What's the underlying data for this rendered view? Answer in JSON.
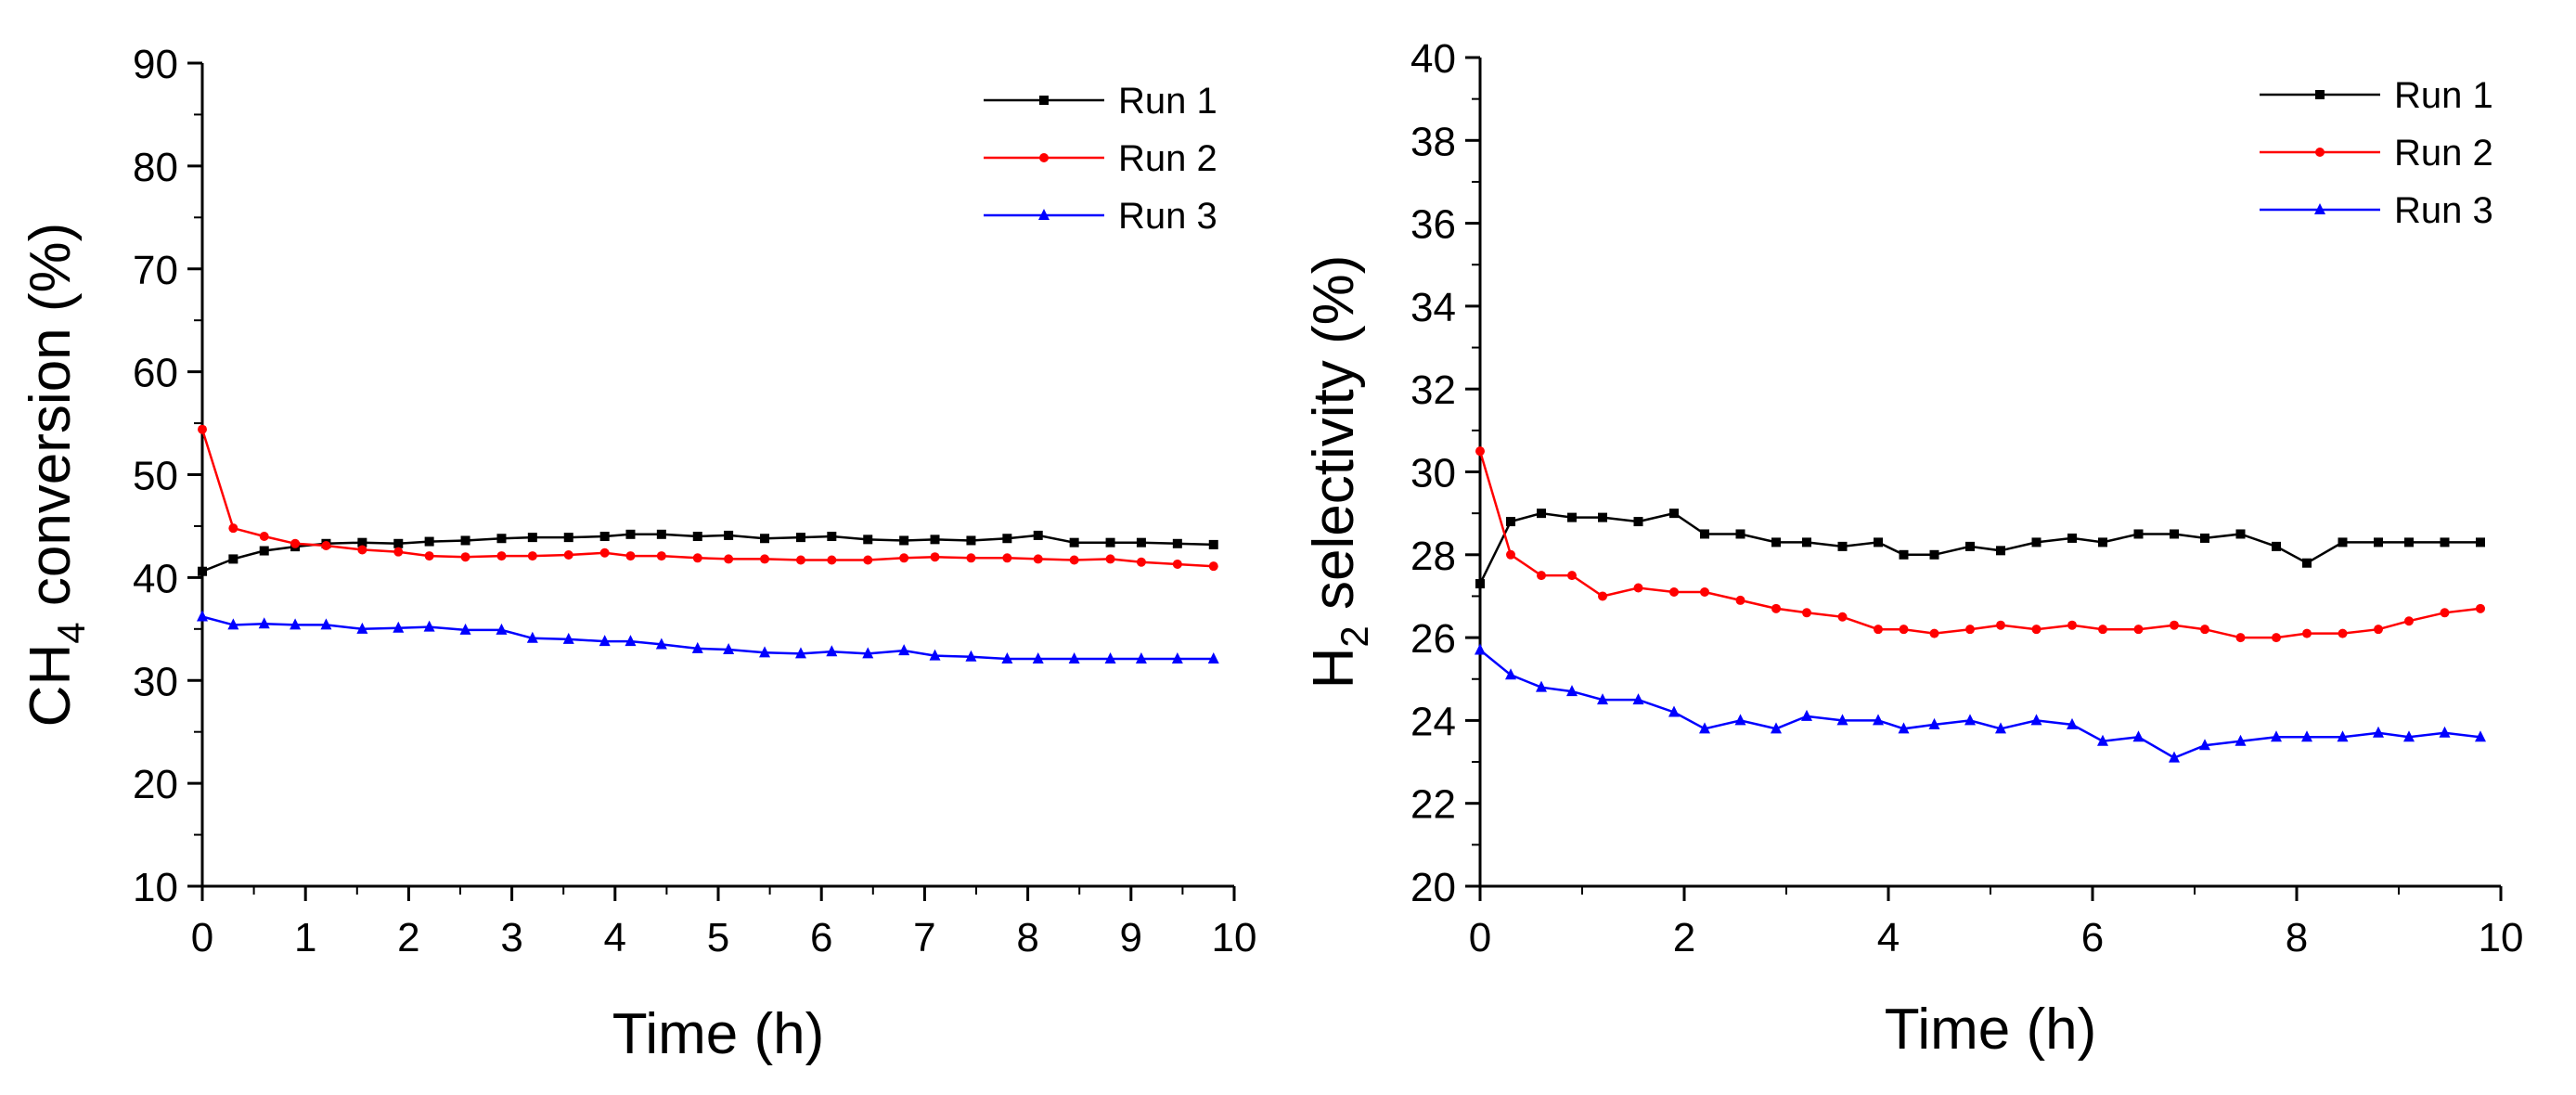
{
  "chart_data": [
    {
      "type": "line",
      "title": "",
      "xlabel": "Time (h)",
      "ylabel": {
        "main": "CH",
        "sub": "4",
        "rest": " conversion (%)"
      },
      "xlim": [
        0,
        10
      ],
      "ylim": [
        10,
        90
      ],
      "xticks": [
        0,
        1,
        2,
        3,
        4,
        5,
        6,
        7,
        8,
        9,
        10
      ],
      "yticks": [
        10,
        20,
        30,
        40,
        50,
        60,
        70,
        80,
        90
      ],
      "legend_position": "top-right",
      "x": [
        0,
        0.3,
        0.6,
        0.9,
        1.2,
        1.55,
        1.9,
        2.2,
        2.55,
        2.9,
        3.2,
        3.55,
        3.9,
        4.15,
        4.45,
        4.8,
        5.1,
        5.45,
        5.8,
        6.1,
        6.45,
        6.8,
        7.1,
        7.45,
        7.8,
        8.1,
        8.45,
        8.8,
        9.1,
        9.45,
        9.8
      ],
      "series": [
        {
          "name": "Run 1",
          "color": "#000000",
          "marker": "square",
          "values": [
            40.6,
            41.8,
            42.6,
            43.0,
            43.3,
            43.4,
            43.3,
            43.5,
            43.6,
            43.8,
            43.9,
            43.9,
            44.0,
            44.2,
            44.2,
            44.0,
            44.1,
            43.8,
            43.9,
            44.0,
            43.7,
            43.6,
            43.7,
            43.6,
            43.8,
            44.1,
            43.4,
            43.4,
            43.4,
            43.3,
            43.2
          ]
        },
        {
          "name": "Run 2",
          "color": "#ff0000",
          "marker": "circle",
          "values": [
            54.4,
            44.8,
            44.0,
            43.3,
            43.1,
            42.7,
            42.5,
            42.1,
            42.0,
            42.1,
            42.1,
            42.2,
            42.4,
            42.1,
            42.1,
            41.9,
            41.8,
            41.8,
            41.7,
            41.7,
            41.7,
            41.9,
            42.0,
            41.9,
            41.9,
            41.8,
            41.7,
            41.8,
            41.5,
            41.3,
            41.1
          ]
        },
        {
          "name": "Run 3",
          "color": "#0000ff",
          "marker": "triangle",
          "values": [
            36.2,
            35.4,
            35.5,
            35.4,
            35.4,
            35.0,
            35.1,
            35.2,
            34.9,
            34.9,
            34.1,
            34.0,
            33.8,
            33.8,
            33.5,
            33.1,
            33.0,
            32.7,
            32.6,
            32.8,
            32.6,
            32.9,
            32.4,
            32.3,
            32.1,
            32.1,
            32.1,
            32.1,
            32.1,
            32.1,
            32.1
          ]
        }
      ]
    },
    {
      "type": "line",
      "title": "",
      "xlabel": "Time (h)",
      "ylabel": {
        "main": "H",
        "sub": "2",
        "rest": " selectivity (%)"
      },
      "xlim": [
        0,
        10
      ],
      "ylim": [
        20,
        40
      ],
      "xticks": [
        0,
        2,
        4,
        6,
        8,
        10
      ],
      "yticks": [
        20,
        22,
        24,
        26,
        28,
        30,
        32,
        34,
        36,
        38,
        40
      ],
      "legend_position": "top-right",
      "x": [
        0,
        0.3,
        0.6,
        0.9,
        1.2,
        1.55,
        1.9,
        2.2,
        2.55,
        2.9,
        3.2,
        3.55,
        3.9,
        4.15,
        4.45,
        4.8,
        5.1,
        5.45,
        5.8,
        6.1,
        6.45,
        6.8,
        7.1,
        7.45,
        7.8,
        8.1,
        8.45,
        8.8,
        9.1,
        9.45,
        9.8
      ],
      "series": [
        {
          "name": "Run 1",
          "color": "#000000",
          "marker": "square",
          "values": [
            27.3,
            28.8,
            29.0,
            28.9,
            28.9,
            28.8,
            29.0,
            28.5,
            28.5,
            28.3,
            28.3,
            28.2,
            28.3,
            28.0,
            28.0,
            28.2,
            28.1,
            28.3,
            28.4,
            28.3,
            28.5,
            28.5,
            28.4,
            28.5,
            28.2,
            27.8,
            28.3,
            28.3,
            28.3,
            28.3,
            28.3
          ]
        },
        {
          "name": "Run 2",
          "color": "#ff0000",
          "marker": "circle",
          "values": [
            30.5,
            28.0,
            27.5,
            27.5,
            27.0,
            27.2,
            27.1,
            27.1,
            26.9,
            26.7,
            26.6,
            26.5,
            26.2,
            26.2,
            26.1,
            26.2,
            26.3,
            26.2,
            26.3,
            26.2,
            26.2,
            26.3,
            26.2,
            26.0,
            26.0,
            26.1,
            26.1,
            26.2,
            26.4,
            26.6,
            26.7
          ]
        },
        {
          "name": "Run 3",
          "color": "#0000ff",
          "marker": "triangle",
          "values": [
            25.7,
            25.1,
            24.8,
            24.7,
            24.5,
            24.5,
            24.2,
            23.8,
            24.0,
            23.8,
            24.1,
            24.0,
            24.0,
            23.8,
            23.9,
            24.0,
            23.8,
            24.0,
            23.9,
            23.5,
            23.6,
            23.1,
            23.4,
            23.5,
            23.6,
            23.6,
            23.6,
            23.7,
            23.6,
            23.7,
            23.6
          ]
        }
      ]
    }
  ]
}
